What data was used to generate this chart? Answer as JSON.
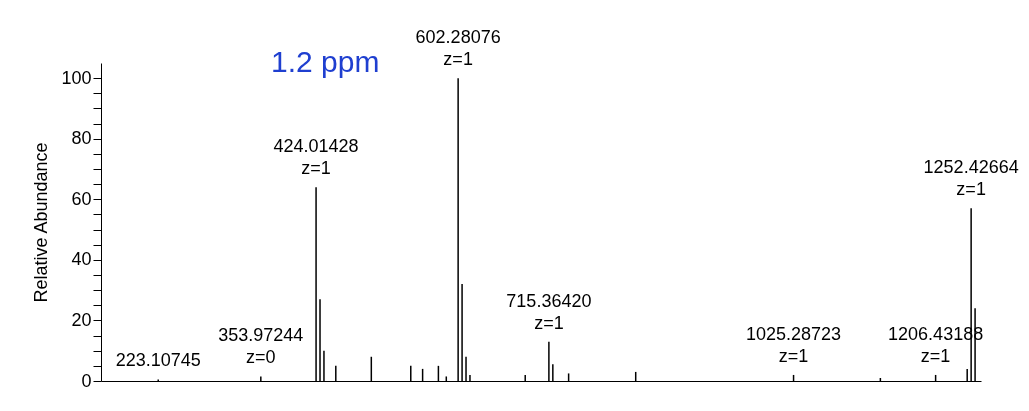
{
  "chart_data": {
    "type": "bar",
    "ylabel": "Relative Abundance",
    "tick_labels": "y",
    "ylim": [
      0,
      105
    ],
    "yticks": [
      0,
      {
        "value": 5,
        "label": null
      },
      {
        "value": 10,
        "label": null
      },
      {
        "value": 15,
        "label": null
      },
      20,
      {
        "value": 25,
        "label": null
      },
      {
        "value": 30,
        "label": null
      },
      {
        "value": 35,
        "label": null
      },
      40,
      {
        "value": 45,
        "label": null
      },
      {
        "value": 50,
        "label": null
      },
      {
        "value": 55,
        "label": null
      },
      60,
      {
        "value": 65,
        "label": null
      },
      {
        "value": 70,
        "label": null
      },
      {
        "value": 75,
        "label": null
      },
      80,
      {
        "value": 85,
        "label": null
      },
      {
        "value": 90,
        "label": null
      },
      {
        "value": 95,
        "label": null
      },
      100
    ],
    "categories": [
      null,
      null,
      null,
      null,
      null,
      null,
      null,
      null,
      null,
      null,
      null,
      null,
      null,
      null,
      "223.10745",
      null,
      null,
      null,
      null,
      null,
      null,
      null,
      null,
      null,
      null,
      null,
      null,
      null,
      null,
      null,
      null,
      null,
      null,
      null,
      null,
      null,
      null,
      null,
      null,
      null,
      "353.97244",
      null,
      null,
      null,
      null,
      null,
      null,
      null,
      null,
      null,
      null,
      null,
      null,
      null,
      "424.01428",
      null,
      null,
      null,
      null,
      null,
      null,
      null,
      null,
      null,
      null,
      null,
      null,
      null,
      null,
      null,
      null,
      null,
      null,
      null,
      null,
      null,
      null,
      null,
      null,
      null,
      null,
      null,
      null,
      null,
      null,
      null,
      null,
      null,
      null,
      null,
      "602.28076",
      null,
      null,
      null,
      null,
      null,
      null,
      null,
      null,
      null,
      null,
      null,
      null,
      null,
      null,
      null,
      null,
      null,
      null,
      null,
      null,
      null,
      null,
      "715.36420",
      null,
      null,
      null,
      null,
      null,
      null,
      null,
      null,
      null,
      null,
      null,
      null,
      null,
      null,
      null,
      null,
      null,
      null,
      null,
      null,
      null,
      null,
      null,
      null,
      null,
      null,
      null,
      null,
      null,
      null,
      null,
      null,
      null,
      null,
      null,
      null,
      null,
      null,
      null,
      null,
      null,
      null,
      null,
      null,
      null,
      null,
      null,
      null,
      null,
      null,
      null,
      null,
      null,
      null,
      null,
      null,
      null,
      null,
      null,
      null,
      null,
      "1025.28723",
      null,
      null,
      null,
      null,
      null,
      null,
      null,
      null,
      null,
      null,
      null,
      null,
      null,
      null,
      null,
      null,
      null,
      null,
      null,
      null,
      null,
      null,
      null,
      null,
      null,
      null,
      null,
      null,
      null,
      null,
      null,
      null,
      null,
      null,
      null,
      "1206.43188",
      null,
      null,
      null,
      null,
      null,
      null,
      null,
      null,
      "1252.42664",
      null,
      null
    ],
    "values": [
      null,
      null,
      null,
      null,
      null,
      null,
      null,
      null,
      null,
      null,
      null,
      null,
      null,
      null,
      0.5,
      null,
      null,
      null,
      null,
      null,
      null,
      null,
      null,
      null,
      null,
      null,
      null,
      null,
      null,
      null,
      null,
      null,
      null,
      null,
      null,
      null,
      null,
      null,
      null,
      null,
      1.5,
      null,
      null,
      null,
      null,
      null,
      null,
      null,
      null,
      null,
      null,
      null,
      null,
      null,
      64,
      27,
      10,
      null,
      null,
      5,
      null,
      null,
      null,
      null,
      null,
      null,
      null,
      null,
      8,
      null,
      null,
      null,
      null,
      null,
      null,
      null,
      null,
      null,
      5,
      null,
      null,
      4,
      null,
      null,
      null,
      5,
      null,
      1.5,
      null,
      null,
      100,
      32,
      8,
      2,
      null,
      null,
      null,
      null,
      null,
      null,
      null,
      null,
      null,
      null,
      null,
      null,
      null,
      2,
      null,
      null,
      null,
      null,
      null,
      13,
      5.5,
      null,
      null,
      null,
      2.5,
      null,
      null,
      null,
      null,
      null,
      null,
      null,
      null,
      null,
      null,
      null,
      null,
      null,
      null,
      null,
      null,
      3,
      null,
      null,
      null,
      null,
      null,
      null,
      null,
      null,
      null,
      null,
      null,
      null,
      null,
      null,
      null,
      null,
      null,
      null,
      null,
      null,
      null,
      null,
      null,
      null,
      null,
      null,
      null,
      null,
      null,
      null,
      null,
      null,
      null,
      null,
      null,
      null,
      null,
      null,
      null,
      2,
      null,
      null,
      null,
      null,
      null,
      null,
      null,
      null,
      null,
      null,
      null,
      null,
      null,
      null,
      null,
      null,
      null,
      null,
      null,
      null,
      null,
      1,
      null,
      null,
      null,
      null,
      null,
      null,
      null,
      null,
      null,
      null,
      null,
      null,
      null,
      2,
      null,
      null,
      null,
      null,
      null,
      null,
      null,
      4,
      57,
      24,
      null
    ],
    "color": "#000000",
    "annotations": [
      "1.2 ppm",
      {
        "text": "z=0",
        "x": "353.97244",
        "y": 1.5
      },
      {
        "text": "z=1",
        "x": "424.01428",
        "y": 64
      },
      {
        "text": "z=1",
        "x": "602.28076",
        "y": 100
      },
      {
        "text": "z=1",
        "x": "715.36420",
        "y": 13
      },
      {
        "text": "z=1",
        "x": "1025.28723",
        "y": 2
      },
      {
        "text": "z=1",
        "x": "1206.43188",
        "y": 2
      },
      {
        "text": "z=1",
        "x": "1252.42664",
        "y": 57
      }
    ]
  }
}
